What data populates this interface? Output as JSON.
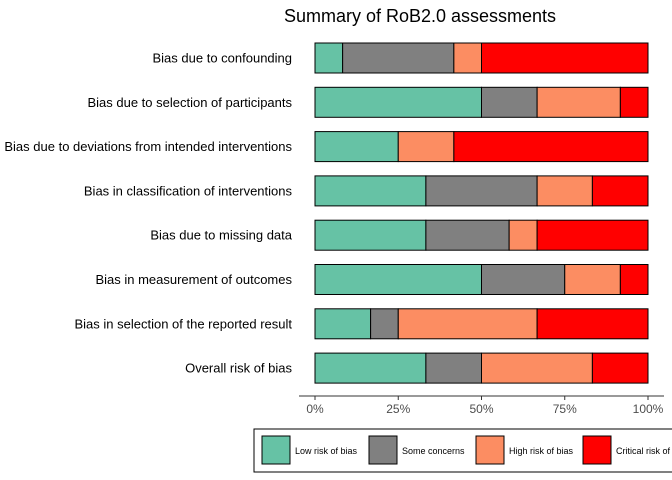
{
  "chart_data": {
    "type": "bar",
    "orientation": "horizontal",
    "stacked": true,
    "title": "Summary of RoB2.0 assessments",
    "xlabel": "",
    "ylabel": "",
    "xlim": [
      0,
      100
    ],
    "x_ticks": [
      "0%",
      "25%",
      "50%",
      "75%",
      "100%"
    ],
    "x_tick_values": [
      0,
      25,
      50,
      75,
      100
    ],
    "grid": false,
    "legend_position": "bottom",
    "categories": [
      "Bias due to confounding",
      "Bias due to selection of participants",
      "Bias due to deviations from intended interventions",
      "Bias in classification of interventions",
      "Bias due to missing data",
      "Bias in measurement of outcomes",
      "Bias in selection of the reported result",
      "Overall risk of bias"
    ],
    "series": [
      {
        "name": "Low risk of bias",
        "color": "#66C2A5",
        "values": [
          8.3,
          50,
          25,
          33.3,
          33.3,
          50,
          16.7,
          33.3
        ]
      },
      {
        "name": "Some concerns",
        "color": "#808080",
        "values": [
          33.4,
          16.7,
          0,
          33.4,
          25,
          25,
          8.3,
          16.7
        ]
      },
      {
        "name": "High risk of bias",
        "color": "#FC8D62",
        "values": [
          8.3,
          25,
          16.7,
          16.6,
          8.4,
          16.7,
          41.7,
          33.3
        ]
      },
      {
        "name": "Critical risk of bias",
        "color": "#FF0000",
        "values": [
          50,
          8.3,
          58.3,
          16.7,
          33.3,
          8.3,
          33.3,
          16.7
        ]
      }
    ]
  }
}
